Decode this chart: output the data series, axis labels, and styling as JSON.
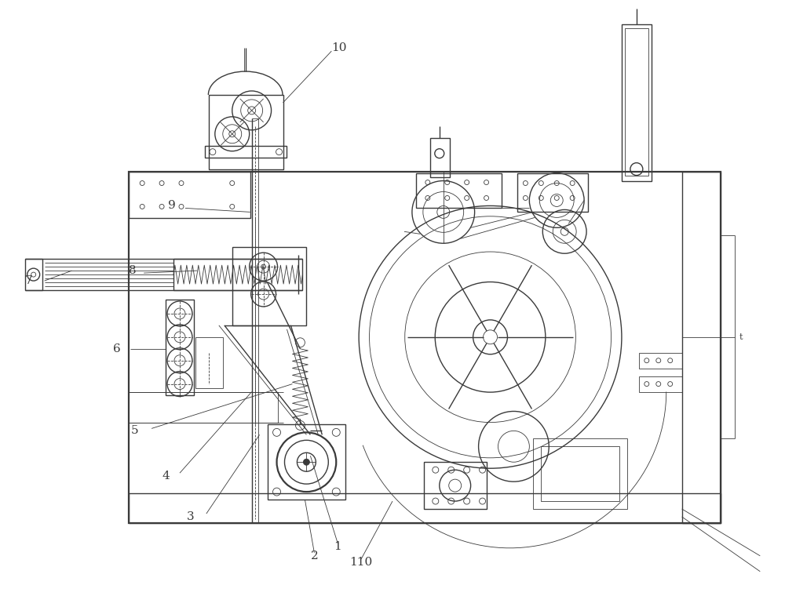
{
  "bg_color": "#ffffff",
  "line_color": "#3a3a3a",
  "lw": 1.0,
  "tlw": 0.6,
  "thk": 1.6,
  "fig_width": 10.0,
  "fig_height": 7.6
}
